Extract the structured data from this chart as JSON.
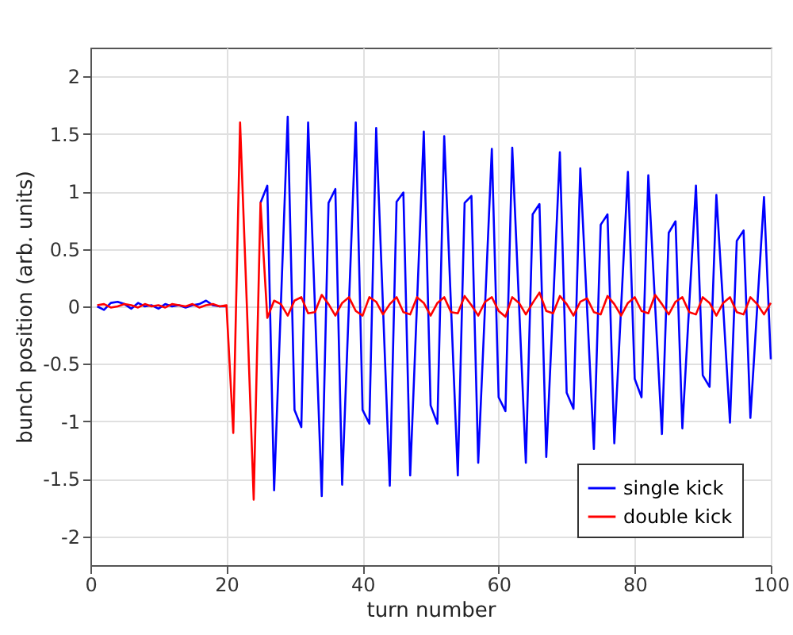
{
  "chart_data": {
    "type": "line",
    "xlabel": "turn number",
    "ylabel": "bunch position (arb. units)",
    "xlim": [
      0,
      100
    ],
    "xticks": [
      0,
      20,
      40,
      60,
      80,
      100
    ],
    "ylim": [
      -2.25,
      2.25
    ],
    "yticks": [
      -2,
      -1.5,
      -1,
      -0.5,
      0,
      0.5,
      1,
      1.5,
      2
    ],
    "grid": true,
    "legend": "bottom right",
    "marker": "none",
    "line_style": "solid",
    "series": [
      {
        "name": "single kick",
        "color": "#0000ff",
        "x": [
          1,
          2,
          3,
          4,
          5,
          6,
          7,
          8,
          9,
          10,
          11,
          12,
          13,
          14,
          15,
          16,
          17,
          18,
          19,
          20,
          21,
          22,
          23,
          24,
          25,
          26,
          27,
          28,
          29,
          30,
          31,
          32,
          33,
          34,
          35,
          36,
          37,
          38,
          39,
          40,
          41,
          42,
          43,
          44,
          45,
          46,
          47,
          48,
          49,
          50,
          51,
          52,
          53,
          54,
          55,
          56,
          57,
          58,
          59,
          60,
          61,
          62,
          63,
          64,
          65,
          66,
          67,
          68,
          69,
          70,
          71,
          72,
          73,
          74,
          75,
          76,
          77,
          78,
          79,
          80,
          81,
          82,
          83,
          84,
          85,
          86,
          87,
          88,
          89,
          90,
          91,
          92,
          93,
          94,
          95,
          96,
          97,
          98,
          99,
          100
        ],
        "values": [
          0.0,
          -0.03,
          0.03,
          0.04,
          0.02,
          -0.02,
          0.03,
          0.0,
          0.01,
          -0.02,
          0.02,
          0.0,
          0.01,
          -0.01,
          0.01,
          0.02,
          0.05,
          0.01,
          0.0,
          0.0,
          null,
          null,
          null,
          null,
          0.9,
          1.05,
          -1.6,
          0.02,
          1.65,
          -0.9,
          -1.05,
          1.6,
          0.0,
          -1.65,
          0.9,
          1.02,
          -1.55,
          0.02,
          1.6,
          -0.9,
          -1.02,
          1.55,
          0.0,
          -1.56,
          0.91,
          0.99,
          -1.47,
          0.02,
          1.52,
          -0.86,
          -1.02,
          1.48,
          0.0,
          -1.47,
          0.9,
          0.96,
          -1.36,
          0.0,
          1.37,
          -0.79,
          -0.91,
          1.38,
          0.01,
          -1.36,
          0.8,
          0.89,
          -1.31,
          0.01,
          1.34,
          -0.75,
          -0.89,
          1.2,
          -0.02,
          -1.24,
          0.71,
          0.8,
          -1.19,
          -0.01,
          1.17,
          -0.63,
          -0.79,
          1.14,
          0.01,
          -1.11,
          0.64,
          0.74,
          -1.06,
          0.0,
          1.05,
          -0.6,
          -0.7,
          0.97,
          0.0,
          -1.01,
          0.57,
          0.66,
          -0.97,
          -0.01,
          0.95,
          -0.46
        ]
      },
      {
        "name": "double kick",
        "color": "#ff0000",
        "x": [
          1,
          2,
          3,
          4,
          5,
          6,
          7,
          8,
          9,
          10,
          11,
          12,
          13,
          14,
          15,
          16,
          17,
          18,
          19,
          20,
          21,
          22,
          23,
          24,
          25,
          26,
          27,
          28,
          29,
          30,
          31,
          32,
          33,
          34,
          35,
          36,
          37,
          38,
          39,
          40,
          41,
          42,
          43,
          44,
          45,
          46,
          47,
          48,
          49,
          50,
          51,
          52,
          53,
          54,
          55,
          56,
          57,
          58,
          59,
          60,
          61,
          62,
          63,
          64,
          65,
          66,
          67,
          68,
          69,
          70,
          71,
          72,
          73,
          74,
          75,
          76,
          77,
          78,
          79,
          80,
          81,
          82,
          83,
          84,
          85,
          86,
          87,
          88,
          89,
          90,
          91,
          92,
          93,
          94,
          95,
          96,
          97,
          98,
          99,
          100
        ],
        "values": [
          0.01,
          0.02,
          -0.01,
          0.0,
          0.02,
          0.01,
          -0.01,
          0.02,
          0.0,
          0.01,
          -0.01,
          0.02,
          0.01,
          0.0,
          0.02,
          -0.01,
          0.01,
          0.02,
          0.0,
          0.01,
          -1.1,
          1.6,
          0.0,
          -1.68,
          0.9,
          -0.1,
          0.05,
          0.02,
          -0.08,
          0.05,
          0.08,
          -0.06,
          -0.05,
          0.1,
          0.02,
          -0.08,
          0.03,
          0.08,
          -0.04,
          -0.08,
          0.08,
          0.04,
          -0.07,
          0.02,
          0.08,
          -0.05,
          -0.07,
          0.08,
          0.03,
          -0.08,
          0.03,
          0.08,
          -0.05,
          -0.06,
          0.09,
          0.01,
          -0.08,
          0.04,
          0.08,
          -0.04,
          -0.09,
          0.08,
          0.03,
          -0.07,
          0.03,
          0.12,
          -0.04,
          -0.06,
          0.09,
          0.02,
          -0.08,
          0.04,
          0.07,
          -0.05,
          -0.07,
          0.09,
          0.02,
          -0.08,
          0.03,
          0.08,
          -0.04,
          -0.06,
          0.1,
          0.02,
          -0.07,
          0.04,
          0.08,
          -0.05,
          -0.07,
          0.08,
          0.03,
          -0.08,
          0.03,
          0.08,
          -0.05,
          -0.07,
          0.08,
          0.02,
          -0.07,
          0.03
        ]
      }
    ]
  }
}
